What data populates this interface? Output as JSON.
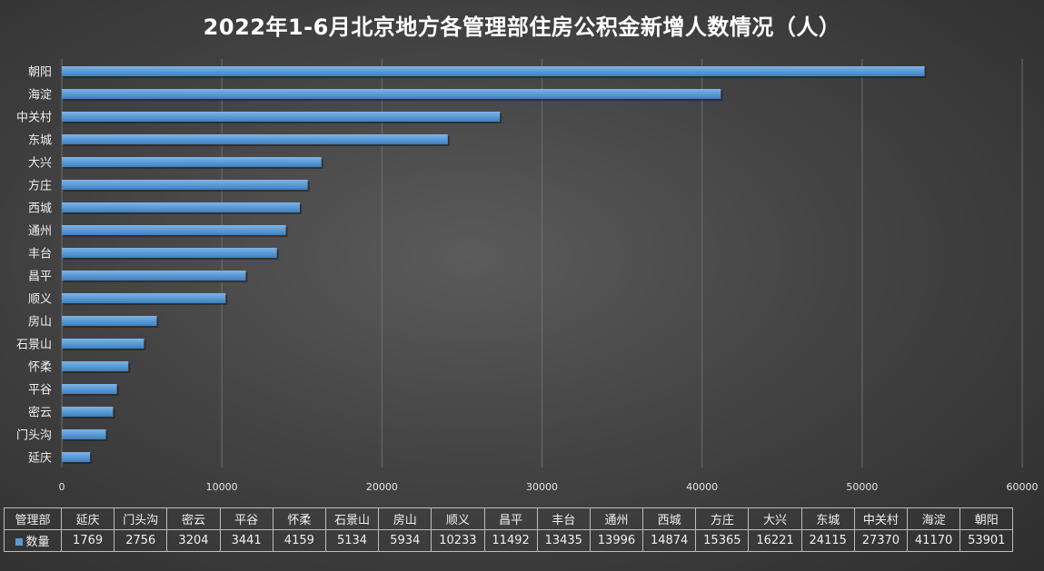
{
  "chart_data": {
    "type": "bar",
    "orientation": "horizontal",
    "title": "2022年1-6月北京地方各管理部住房公积金新增人数情况（人）",
    "categories": [
      "延庆",
      "门头沟",
      "密云",
      "平谷",
      "怀柔",
      "石景山",
      "房山",
      "顺义",
      "昌平",
      "丰台",
      "通州",
      "西城",
      "方庄",
      "大兴",
      "东城",
      "中关村",
      "海淀",
      "朝阳"
    ],
    "series": [
      {
        "name": "数量",
        "values": [
          1769,
          2756,
          3204,
          3441,
          4159,
          5134,
          5934,
          10233,
          11492,
          13435,
          13996,
          14874,
          15365,
          16221,
          24115,
          27370,
          41170,
          53901
        ],
        "color": "#5b9bd5"
      }
    ],
    "xlim": [
      0,
      60000
    ],
    "x_ticks": [
      "0",
      "10000",
      "20000",
      "30000",
      "40000",
      "50000",
      "60000"
    ],
    "grid": true,
    "data_table": {
      "header_label": "管理部",
      "series_label": "数量"
    }
  }
}
